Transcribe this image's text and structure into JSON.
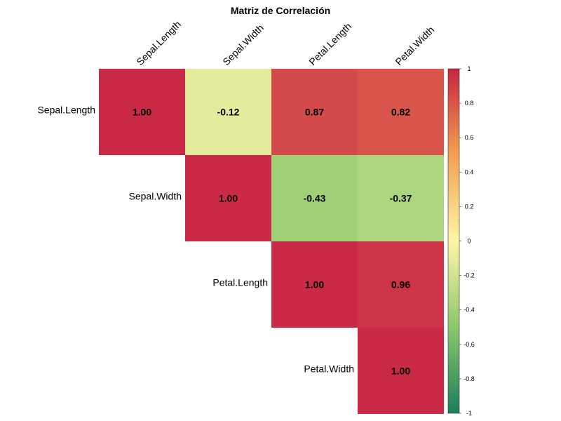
{
  "chart_data": {
    "type": "heatmap",
    "title": "Matriz de Correlación",
    "variables": [
      "Sepal.Length",
      "Sepal.Width",
      "Petal.Length",
      "Petal.Width"
    ],
    "matrix": [
      [
        1.0,
        -0.12,
        0.87,
        0.82
      ],
      [
        -0.12,
        1.0,
        -0.43,
        -0.37
      ],
      [
        0.87,
        -0.43,
        1.0,
        0.96
      ],
      [
        0.82,
        -0.37,
        0.96,
        1.0
      ]
    ],
    "display": "upper-triangle",
    "value_labels": [
      [
        "1.00",
        "-0.12",
        "0.87",
        "0.82"
      ],
      [
        "",
        "1.00",
        "-0.43",
        "-0.37"
      ],
      [
        "",
        "",
        "1.00",
        "0.96"
      ],
      [
        "",
        "",
        "",
        "1.00"
      ]
    ],
    "colorbar": {
      "range": [
        -1,
        1
      ],
      "ticks": [
        1,
        0.8,
        0.6,
        0.4,
        0.2,
        0,
        -0.2,
        -0.4,
        -0.6,
        -0.8,
        -1
      ],
      "tick_labels": [
        "1",
        "0.8",
        "0.6",
        "0.4",
        "0.2",
        "0",
        "-0.2",
        "-0.4",
        "-0.6",
        "-0.8",
        "-1"
      ],
      "colormap": "RdYlGn reversed",
      "colors": {
        "low": "#1a7f5a",
        "mid_low": "#8cc76a",
        "mid": "#fef6a6",
        "mid_high": "#f4a04e",
        "high": "#c82340"
      }
    },
    "legend": "right"
  }
}
